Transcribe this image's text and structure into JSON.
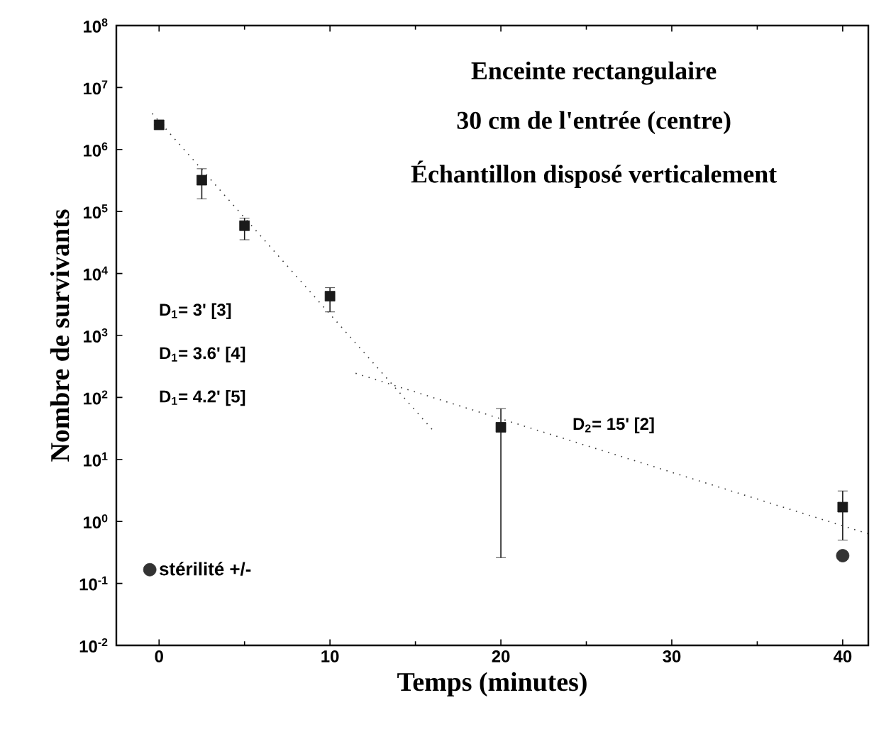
{
  "chart_data": {
    "type": "scatter",
    "title": "Enceinte rectangulaire",
    "subtitle": "30 cm de l'entrée (centre)",
    "xlabel": "Temps (minutes)",
    "ylabel": "Nombre de survivants",
    "annotations": [
      "Échantillon disposé verticalement",
      "D$_{1}$= 3' [3]",
      "D$_{1}$= 3.6' [4]",
      "D$_{1}$= 4.2' [5]",
      "D$_{2}$= 15' [2]"
    ],
    "log": "y",
    "xlim": [
      -2.5,
      41.5
    ],
    "ylim": [
      0.01,
      100000000
    ],
    "xticks": [
      0,
      10,
      20,
      30,
      40
    ],
    "yticks": [
      {
        "value": 0.01,
        "label": "10$^{-2}$"
      },
      {
        "value": 0.1,
        "label": "10$^{-1}$"
      },
      {
        "value": 1,
        "label": "10$^{0}$"
      },
      {
        "value": 10,
        "label": "10$^{1}$"
      },
      {
        "value": 100,
        "label": "10$^{2}$"
      },
      {
        "value": 1000,
        "label": "10$^{3}$"
      },
      {
        "value": 10000,
        "label": "10$^{4}$"
      },
      {
        "value": 100000,
        "label": "10$^{5}$"
      },
      {
        "value": 1000000,
        "label": "10$^{6}$"
      },
      {
        "value": 10000000,
        "label": "10$^{7}$"
      },
      {
        "value": 100000000,
        "label": "10$^{8}$"
      }
    ],
    "grid": false,
    "legend": "bottom left",
    "series": [
      {
        "color": "#1a1a1a",
        "marker": "square",
        "x": [
          0,
          2.5,
          5,
          10,
          20,
          40
        ],
        "values": [
          2500000,
          320000,
          59000,
          4300,
          33,
          1.7
        ],
        "errors": [
          null,
          [
            160000,
            490000
          ],
          [
            35000,
            78000
          ],
          [
            2400,
            5900
          ],
          [
            0.26,
            66
          ],
          [
            0.5,
            3.1
          ]
        ]
      },
      {
        "name": "stérilité +/-",
        "color": "#333333",
        "marker": "circle",
        "x": [
          40
        ],
        "values": [
          0.28
        ]
      },
      {
        "type": "line",
        "color": "#333333",
        "line_style": "dotted",
        "marker": "none",
        "x": [
          -0.4,
          16
        ],
        "values": [
          3800000,
          30
        ]
      },
      {
        "type": "line",
        "color": "#333333",
        "line_style": "dotted",
        "marker": "none",
        "x": [
          11.5,
          41.5
        ],
        "values": [
          245,
          0.63
        ]
      }
    ]
  }
}
